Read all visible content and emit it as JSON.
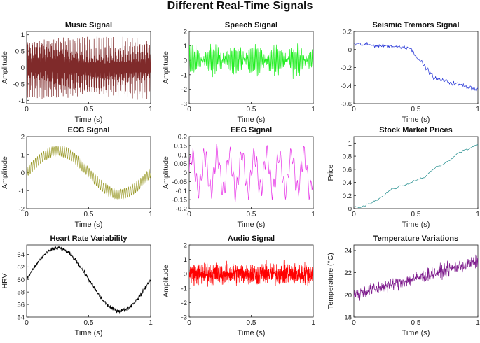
{
  "figure_title": "Different Real-Time Signals",
  "chart_data": [
    {
      "id": "music",
      "type": "line",
      "title": "Music Signal",
      "xlabel": "Time (s)",
      "ylabel": "Amplitude",
      "color": "#7f2a2a",
      "xlim": [
        0,
        1
      ],
      "ylim": [
        -1.1,
        1.1
      ],
      "xticks": [
        "0",
        "0.5",
        "1"
      ],
      "yticks": [
        "-1",
        "-0.5",
        "0",
        "0.5",
        "1"
      ],
      "generator": "music",
      "series": [
        {
          "x_range": [
            0,
            1
          ],
          "approx_values": "dense oscillation between -1 and 1"
        }
      ]
    },
    {
      "id": "speech",
      "type": "line",
      "title": "Speech Signal",
      "xlabel": "Time (s)",
      "ylabel": "Amplitude",
      "color": "#22ee22",
      "xlim": [
        0,
        1
      ],
      "ylim": [
        -3,
        2
      ],
      "xticks": [
        "0",
        "0.5",
        "1"
      ],
      "yticks": [
        "-3",
        "-2",
        "-1",
        "0",
        "1",
        "2"
      ],
      "generator": "speech",
      "series": [
        {
          "x_range": [
            0,
            1
          ],
          "approx_values": "noisy oscillation between about -2 and 1.8"
        }
      ]
    },
    {
      "id": "seismic",
      "type": "line",
      "title": "Seismic Tremors Signal",
      "xlabel": "Time (s)",
      "ylabel": "",
      "color": "#1f2fd6",
      "xlim": [
        0,
        1
      ],
      "ylim": [
        -0.6,
        0.2
      ],
      "xticks": [
        "0",
        "0.5",
        "1"
      ],
      "yticks": [
        "-0.6",
        "-0.4",
        "-0.2",
        "0",
        "0.2"
      ],
      "generator": "seismic",
      "series": [
        {
          "x": [
            0,
            0.1,
            0.2,
            0.35,
            0.5,
            0.6,
            0.7,
            0.8,
            0.9,
            1
          ],
          "y": [
            0.05,
            0.1,
            0.1,
            0.0,
            -0.1,
            -0.3,
            -0.35,
            -0.4,
            -0.45,
            -0.45
          ]
        }
      ]
    },
    {
      "id": "ecg",
      "type": "line",
      "title": "ECG Signal",
      "xlabel": "Time (s)",
      "ylabel": "Amplitude",
      "color": "#9a9a2a",
      "xlim": [
        0,
        1
      ],
      "ylim": [
        -2,
        2
      ],
      "xticks": [
        "0",
        "0.5",
        "1"
      ],
      "yticks": [
        "-2",
        "-1",
        "0",
        "1",
        "2"
      ],
      "generator": "ecg",
      "series": [
        {
          "x": [
            0,
            0.25,
            0.5,
            0.75,
            1
          ],
          "y": [
            0,
            1.2,
            0,
            -1.2,
            0
          ]
        }
      ]
    },
    {
      "id": "eeg",
      "type": "line",
      "title": "EEG Signal",
      "xlabel": "Time (s)",
      "ylabel": "Amplitude",
      "color": "#e62ee6",
      "xlim": [
        0,
        1
      ],
      "ylim": [
        -0.2,
        0.2
      ],
      "xticks": [
        "0",
        "0.5",
        "1"
      ],
      "yticks": [
        "-0.2",
        "-0.15",
        "-0.1",
        "-0.05",
        "0",
        "0.05",
        "0.1",
        "0.15",
        "0.2"
      ],
      "generator": "eeg",
      "series": [
        {
          "x_range": [
            0,
            1
          ],
          "approx_values": "periodic oscillation between about -0.17 and 0.17"
        }
      ]
    },
    {
      "id": "stock",
      "type": "line",
      "title": "Stock Market Prices",
      "xlabel": "Time (s)",
      "ylabel": "Price",
      "color": "#1f8c8c",
      "xlim": [
        0,
        1
      ],
      "ylim": [
        0,
        1.1
      ],
      "xticks": [
        "0",
        "0.5",
        "1"
      ],
      "yticks": [
        "0",
        "0.2",
        "0.4",
        "0.6",
        "0.8",
        "1"
      ],
      "generator": "stock",
      "series": [
        {
          "x": [
            0,
            0.1,
            0.2,
            0.3,
            0.4,
            0.5,
            0.6,
            0.7,
            0.8,
            0.9,
            1
          ],
          "y": [
            0.02,
            0.25,
            0.4,
            0.4,
            0.5,
            0.6,
            0.75,
            0.85,
            0.95,
            1.0,
            1.08
          ]
        }
      ]
    },
    {
      "id": "hrv",
      "type": "line",
      "title": "Heart Rate Variability",
      "xlabel": "Time (s)",
      "ylabel": "HRV",
      "color": "#000000",
      "xlim": [
        0,
        1
      ],
      "ylim": [
        54,
        65.5
      ],
      "xticks": [
        "0",
        "0.5",
        "1"
      ],
      "yticks": [
        "54",
        "56",
        "58",
        "60",
        "62",
        "64"
      ],
      "generator": "hrv",
      "series": [
        {
          "x": [
            0,
            0.25,
            0.5,
            0.75,
            1
          ],
          "y": [
            60,
            65,
            60,
            55,
            60
          ]
        }
      ]
    },
    {
      "id": "audio",
      "type": "line",
      "title": "Audio Signal",
      "xlabel": "Time (s)",
      "ylabel": "Amplitude",
      "color": "#ff0000",
      "xlim": [
        0,
        1
      ],
      "ylim": [
        -3,
        2
      ],
      "xticks": [
        "0",
        "0.5",
        "1"
      ],
      "yticks": [
        "-3",
        "-2",
        "-1",
        "0",
        "1",
        "2"
      ],
      "generator": "audio",
      "series": [
        {
          "x_range": [
            0,
            1
          ],
          "approx_values": "noise between about -2 and 1.8"
        }
      ]
    },
    {
      "id": "temperature",
      "type": "line",
      "title": "Temperature Variations",
      "xlabel": "Time (s)",
      "ylabel": "Temperature (°C)",
      "color": "#7d1a8c",
      "xlim": [
        0,
        1
      ],
      "ylim": [
        18,
        24.5
      ],
      "xticks": [
        "0",
        "0.5",
        "1"
      ],
      "yticks": [
        "18",
        "20",
        "22",
        "24"
      ],
      "generator": "temperature",
      "series": [
        {
          "x": [
            0,
            1
          ],
          "y": [
            20,
            23
          ]
        }
      ]
    }
  ]
}
